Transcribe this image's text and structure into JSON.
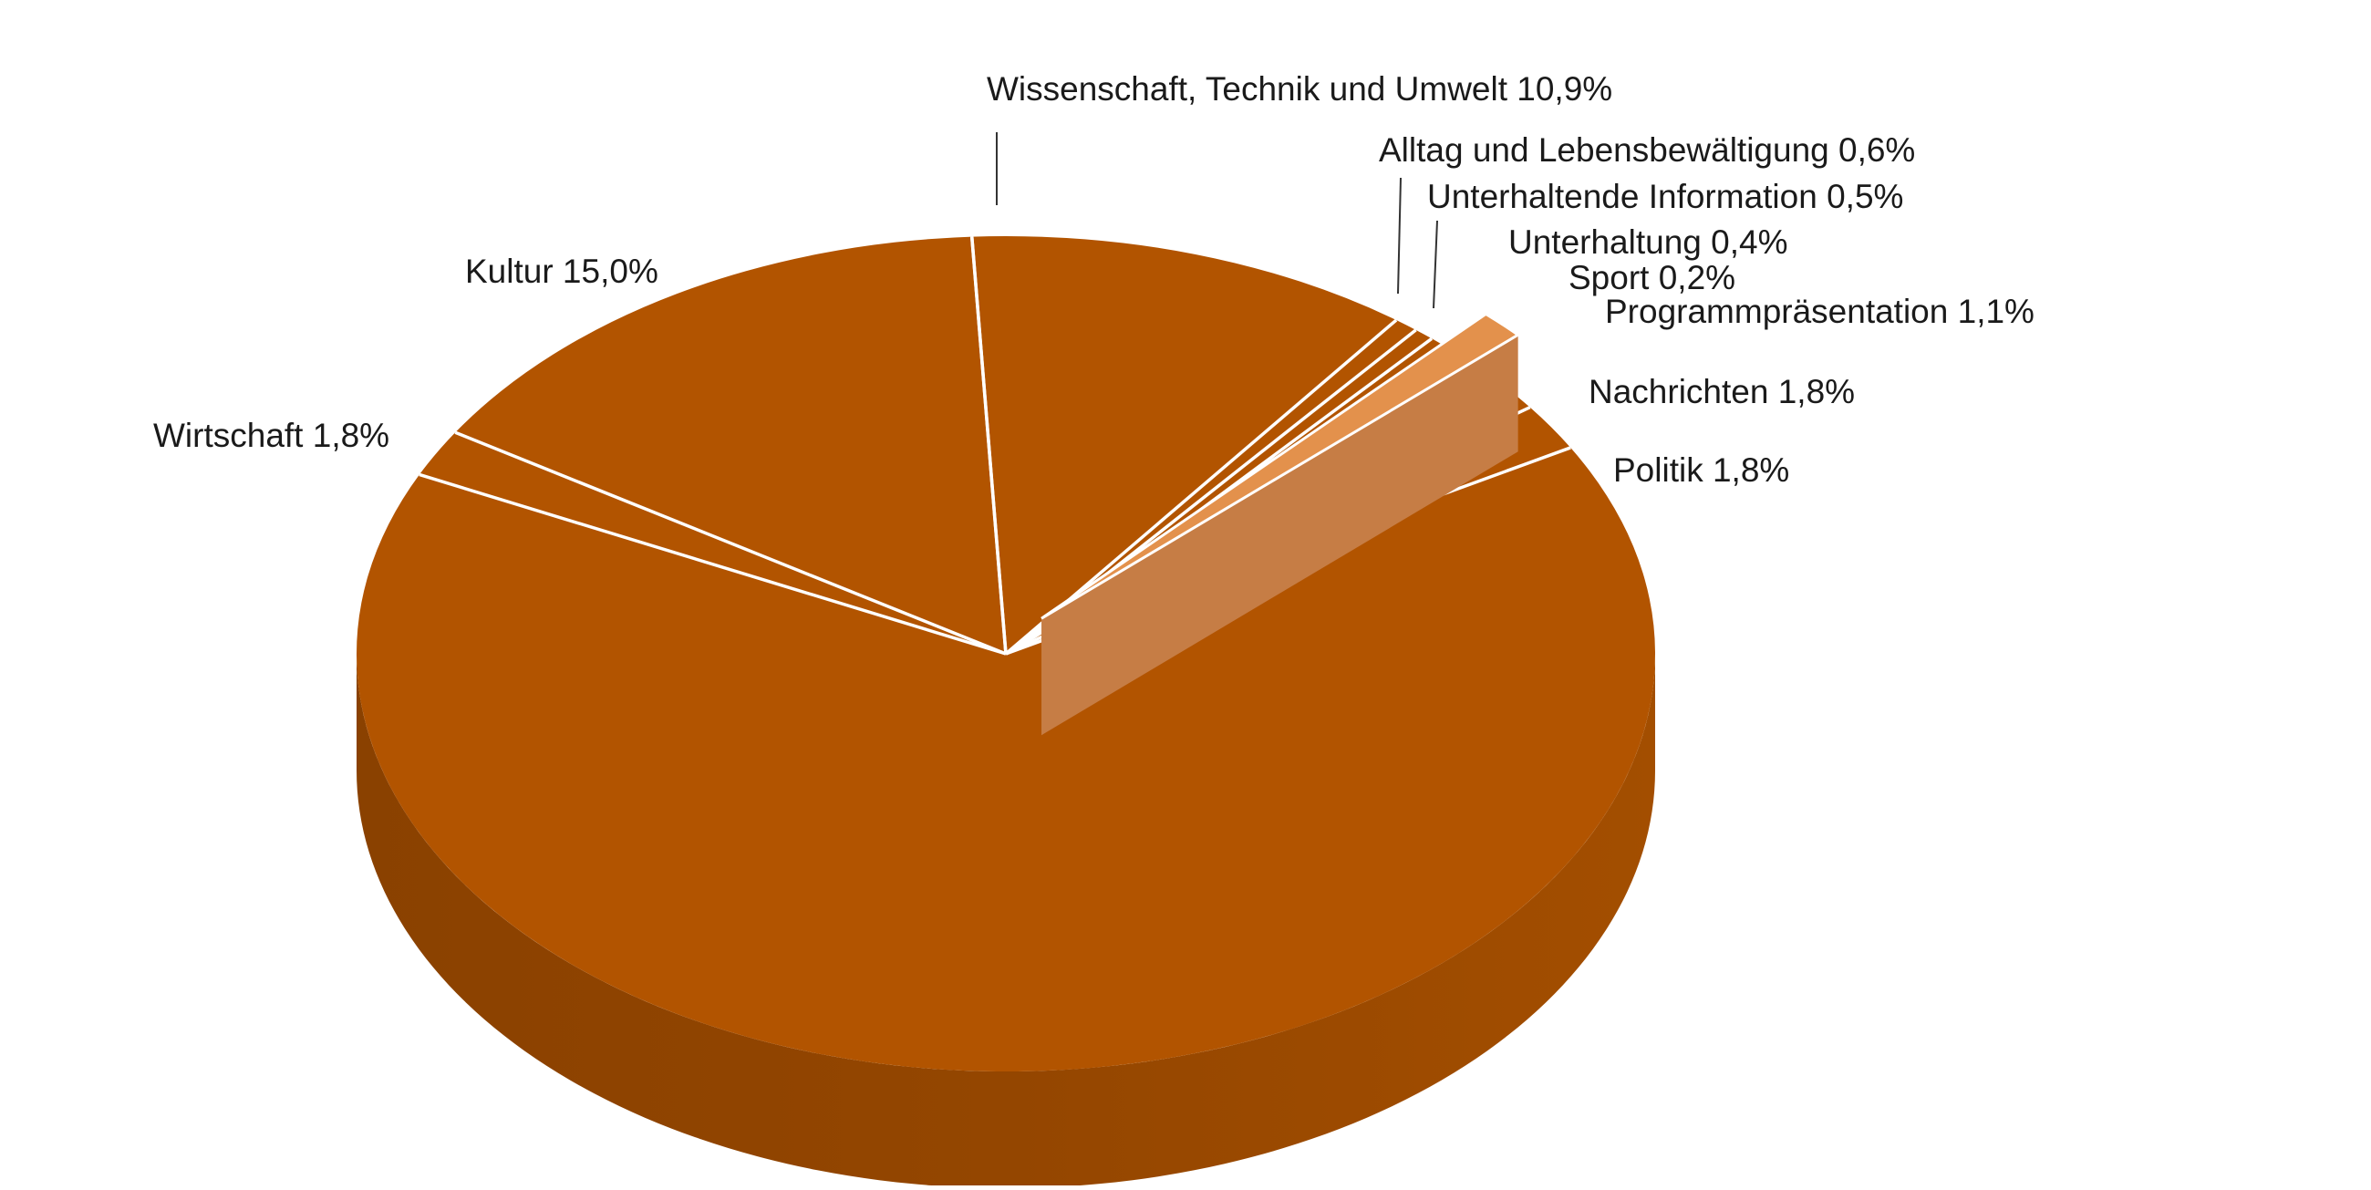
{
  "chart_data": {
    "type": "pie",
    "title": "",
    "colors": {
      "top": "#b25400",
      "side_light": "#a84f00",
      "side_dark": "#8e4300",
      "exploded_top": "#e3914c",
      "exploded_side": "#c67d45",
      "divider": "#ffffff",
      "leader": "#333333"
    },
    "slices": [
      {
        "name": "Wissenschaft, Technik und Umwelt",
        "value_label": "10,9%",
        "value": 10.9
      },
      {
        "name": "Alltag und Lebensbewältigung",
        "value_label": "0,6%",
        "value": 0.6
      },
      {
        "name": "Unterhaltende Information",
        "value_label": "0,5%",
        "value": 0.5
      },
      {
        "name": "Unterhaltung",
        "value_label": "0,4%",
        "value": 0.4
      },
      {
        "name": "Sport",
        "value_label": "0,2%",
        "value": 0.2
      },
      {
        "name": "Programmpräsentation",
        "value_label": "1,1%",
        "value": 1.1,
        "exploded": true
      },
      {
        "name": "Nachrichten",
        "value_label": "1,8%",
        "value": 1.8
      },
      {
        "name": "Politik",
        "value_label": "1,8%",
        "value": 1.8
      },
      {
        "name": "",
        "value_label": "",
        "value": 64.1
      },
      {
        "name": "Wirtschaft",
        "value_label": "1,8%",
        "value": 1.8
      },
      {
        "name": "Kultur",
        "value_label": "15,0%",
        "value": 15.0
      }
    ],
    "labels": [
      {
        "text": "Wissenschaft, Technik und Umwelt  10,9%"
      },
      {
        "text": "Alltag und Lebensbewältigung  0,6%"
      },
      {
        "text": "Unterhaltende Information  0,5%"
      },
      {
        "text": "Unterhaltung  0,4%"
      },
      {
        "text": "Sport  0,2%"
      },
      {
        "text": "Programmpräsentation  1,1%"
      },
      {
        "text": "Nachrichten  1,8%"
      },
      {
        "text": "Politik 1,8%"
      },
      {
        "text": "Wirtschaft  1,8%"
      },
      {
        "text": "Kultur 15,0%"
      }
    ]
  }
}
